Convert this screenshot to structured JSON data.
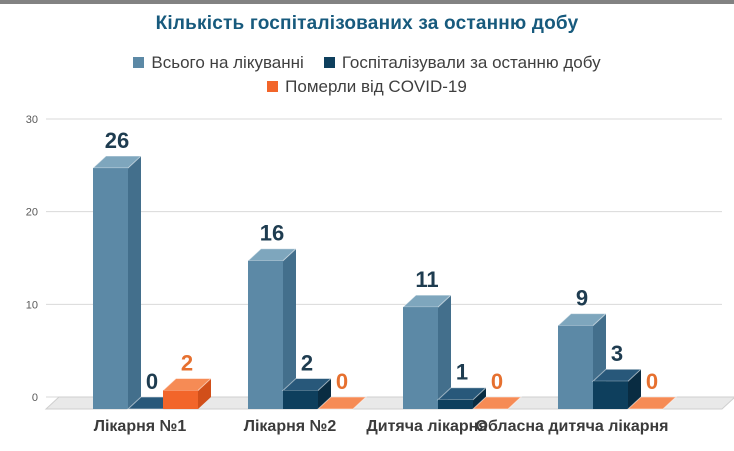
{
  "chrome": {
    "top_edge_color": "#828282"
  },
  "chart_data": {
    "type": "bar",
    "style": "3d-column",
    "title": "Кількість госпіталізованих за останню добу",
    "categories": [
      "Лікарня №1",
      "Лікарня №2",
      "Дитяча лікарня",
      "Обласна дитяча лікарня"
    ],
    "series": [
      {
        "name": "Всього на лікуванні",
        "values": [
          26,
          16,
          11,
          9
        ],
        "color": "#5c89a6",
        "top_color": "#7ea6bd",
        "side_color": "#436f8c",
        "label_color": "#1e3c50"
      },
      {
        "name": "Госпіталізували за останню добу",
        "values": [
          0,
          2,
          1,
          3
        ],
        "color": "#0e3f5d",
        "top_color": "#28587a",
        "side_color": "#092c42",
        "label_color": "#1e3c50"
      },
      {
        "name": "Померли від COVID-19",
        "values": [
          2,
          0,
          0,
          0
        ],
        "color": "#f2652a",
        "top_color": "#f68b55",
        "side_color": "#d14f1a",
        "label_color": "#e6702f"
      }
    ],
    "y_ticks": [
      0,
      10,
      20,
      30
    ],
    "ylim": [
      0,
      30
    ],
    "grid": true,
    "grid_color": "#d9d9d9",
    "floor_color": "#e9e9e9",
    "floor_edge_color": "#cfcfcf",
    "legend_position": "top-center",
    "title_color": "#175a7d"
  }
}
